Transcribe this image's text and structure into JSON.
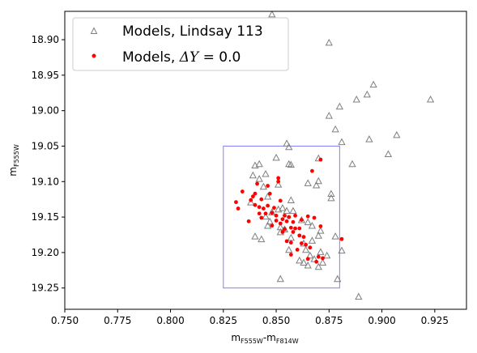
{
  "chart_data": {
    "type": "scatter",
    "xlabel": {
      "base": "m",
      "sub": "F555W",
      "sep": "-",
      "base2": "m",
      "sub2": "F814W"
    },
    "ylabel": {
      "base": "m",
      "sub": "F555W"
    },
    "xlim": [
      0.75,
      0.94
    ],
    "ylim": [
      19.28,
      18.86
    ],
    "y_inverted": true,
    "xticks": [
      "0.750",
      "0.775",
      "0.800",
      "0.825",
      "0.850",
      "0.875",
      "0.900",
      "0.925"
    ],
    "yticks": [
      "18.90",
      "18.95",
      "19.00",
      "19.05",
      "19.10",
      "19.15",
      "19.20",
      "19.25"
    ],
    "xtick_values": [
      0.75,
      0.775,
      0.8,
      0.825,
      0.85,
      0.875,
      0.9,
      0.925
    ],
    "ytick_values": [
      18.9,
      18.95,
      19.0,
      19.05,
      19.1,
      19.15,
      19.2,
      19.25
    ],
    "grid": false,
    "legend_placement": "upper-left",
    "legend": [
      {
        "label": "Models, Lindsay 113",
        "marker": "open-triangle",
        "color": "#7f7f7f"
      },
      {
        "label_prefix": "Models, ",
        "label_symbol": "ΔY",
        "label_suffix": " = 0.0",
        "marker": "dot",
        "color": "#ff0000"
      }
    ],
    "box": {
      "x": [
        0.825,
        0.88
      ],
      "y": [
        19.05,
        19.25
      ],
      "color": "#8080ff"
    },
    "series": [
      {
        "name": "Models, Lindsay 113",
        "marker": "open-triangle",
        "color": "#7f7f7f",
        "points": [
          [
            0.848,
            18.865
          ],
          [
            0.875,
            18.905
          ],
          [
            0.896,
            18.964
          ],
          [
            0.893,
            18.978
          ],
          [
            0.888,
            18.985
          ],
          [
            0.88,
            18.995
          ],
          [
            0.923,
            18.985
          ],
          [
            0.875,
            19.008
          ],
          [
            0.878,
            19.027
          ],
          [
            0.907,
            19.035
          ],
          [
            0.894,
            19.041
          ],
          [
            0.903,
            19.062
          ],
          [
            0.881,
            19.045
          ],
          [
            0.855,
            19.047
          ],
          [
            0.856,
            19.052
          ],
          [
            0.87,
            19.068
          ],
          [
            0.85,
            19.067
          ],
          [
            0.886,
            19.076
          ],
          [
            0.856,
            19.076
          ],
          [
            0.857,
            19.077
          ],
          [
            0.84,
            19.078
          ],
          [
            0.842,
            19.076
          ],
          [
            0.845,
            19.09
          ],
          [
            0.839,
            19.092
          ],
          [
            0.842,
            19.097
          ],
          [
            0.844,
            19.108
          ],
          [
            0.851,
            19.105
          ],
          [
            0.865,
            19.103
          ],
          [
            0.87,
            19.1
          ],
          [
            0.869,
            19.106
          ],
          [
            0.846,
            19.122
          ],
          [
            0.857,
            19.127
          ],
          [
            0.876,
            19.118
          ],
          [
            0.876,
            19.124
          ],
          [
            0.838,
            19.13
          ],
          [
            0.851,
            19.14
          ],
          [
            0.848,
            19.144
          ],
          [
            0.853,
            19.138
          ],
          [
            0.845,
            19.15
          ],
          [
            0.855,
            19.142
          ],
          [
            0.862,
            19.155
          ],
          [
            0.865,
            19.158
          ],
          [
            0.858,
            19.142
          ],
          [
            0.847,
            19.157
          ],
          [
            0.846,
            19.163
          ],
          [
            0.852,
            19.165
          ],
          [
            0.854,
            19.168
          ],
          [
            0.867,
            19.163
          ],
          [
            0.871,
            19.17
          ],
          [
            0.87,
            19.177
          ],
          [
            0.878,
            19.178
          ],
          [
            0.84,
            19.178
          ],
          [
            0.843,
            19.182
          ],
          [
            0.852,
            19.172
          ],
          [
            0.857,
            19.18
          ],
          [
            0.863,
            19.188
          ],
          [
            0.867,
            19.184
          ],
          [
            0.864,
            19.197
          ],
          [
            0.866,
            19.205
          ],
          [
            0.871,
            19.2
          ],
          [
            0.881,
            19.198
          ],
          [
            0.856,
            19.197
          ],
          [
            0.861,
            19.212
          ],
          [
            0.863,
            19.215
          ],
          [
            0.868,
            19.21
          ],
          [
            0.872,
            19.215
          ],
          [
            0.865,
            19.219
          ],
          [
            0.87,
            19.221
          ],
          [
            0.852,
            19.238
          ],
          [
            0.879,
            19.238
          ],
          [
            0.889,
            19.263
          ],
          [
            0.874,
            19.205
          ]
        ]
      },
      {
        "name": "Models, ΔY = 0.0",
        "marker": "dot",
        "color": "#ff0000",
        "points": [
          [
            0.831,
            19.129
          ],
          [
            0.832,
            19.138
          ],
          [
            0.834,
            19.114
          ],
          [
            0.837,
            19.156
          ],
          [
            0.838,
            19.126
          ],
          [
            0.839,
            19.121
          ],
          [
            0.84,
            19.117
          ],
          [
            0.84,
            19.133
          ],
          [
            0.841,
            19.103
          ],
          [
            0.842,
            19.136
          ],
          [
            0.842,
            19.145
          ],
          [
            0.843,
            19.151
          ],
          [
            0.843,
            19.125
          ],
          [
            0.844,
            19.138
          ],
          [
            0.845,
            19.145
          ],
          [
            0.846,
            19.134
          ],
          [
            0.846,
            19.106
          ],
          [
            0.847,
            19.117
          ],
          [
            0.848,
            19.144
          ],
          [
            0.848,
            19.162
          ],
          [
            0.849,
            19.137
          ],
          [
            0.85,
            19.155
          ],
          [
            0.85,
            19.148
          ],
          [
            0.851,
            19.1
          ],
          [
            0.851,
            19.095
          ],
          [
            0.852,
            19.127
          ],
          [
            0.852,
            19.159
          ],
          [
            0.853,
            19.153
          ],
          [
            0.854,
            19.148
          ],
          [
            0.854,
            19.167
          ],
          [
            0.855,
            19.156
          ],
          [
            0.855,
            19.184
          ],
          [
            0.856,
            19.15
          ],
          [
            0.856,
            19.15
          ],
          [
            0.857,
            19.165
          ],
          [
            0.857,
            19.186
          ],
          [
            0.858,
            19.157
          ],
          [
            0.858,
            19.171
          ],
          [
            0.859,
            19.148
          ],
          [
            0.859,
            19.166
          ],
          [
            0.86,
            19.196
          ],
          [
            0.861,
            19.166
          ],
          [
            0.861,
            19.176
          ],
          [
            0.862,
            19.154
          ],
          [
            0.862,
            19.187
          ],
          [
            0.863,
            19.178
          ],
          [
            0.864,
            19.189
          ],
          [
            0.865,
            19.149
          ],
          [
            0.865,
            19.209
          ],
          [
            0.866,
            19.193
          ],
          [
            0.867,
            19.085
          ],
          [
            0.868,
            19.151
          ],
          [
            0.869,
            19.213
          ],
          [
            0.87,
            19.206
          ],
          [
            0.871,
            19.069
          ],
          [
            0.871,
            19.163
          ],
          [
            0.872,
            19.208
          ],
          [
            0.881,
            19.181
          ],
          [
            0.857,
            19.203
          ],
          [
            0.853,
            19.171
          ]
        ]
      }
    ]
  }
}
